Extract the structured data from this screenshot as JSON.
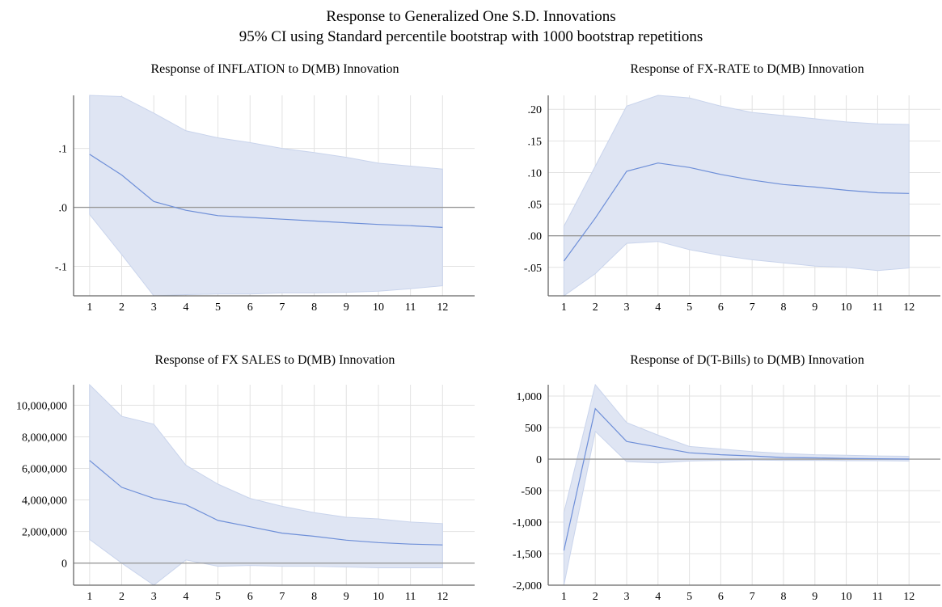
{
  "title": "Response to Generalized One S.D. Innovations",
  "subtitle": "95% CI using Standard percentile bootstrap with 1000 bootstrap repetitions",
  "colors": {
    "line": "#6e8fd8",
    "band": "#dfe5f3",
    "band_edge": "#c9d4ec",
    "zero": "#9a9a9a",
    "grid": "#e2e2e2",
    "axis": "#666666"
  },
  "chart_data": [
    {
      "type": "line",
      "title": "Response of INFLATION to D(MB) Innovation",
      "x": [
        1,
        2,
        3,
        4,
        5,
        6,
        7,
        8,
        9,
        10,
        11,
        12
      ],
      "xticks": [
        "1",
        "2",
        "3",
        "4",
        "5",
        "6",
        "7",
        "8",
        "9",
        "10",
        "11",
        "12"
      ],
      "ylim": [
        -0.15,
        0.19
      ],
      "yticks": [
        -0.1,
        0,
        0.1
      ],
      "ytick_labels": [
        "-.1",
        ".0",
        ".1"
      ],
      "series": [
        {
          "values": [
            0.09,
            0.055,
            0.01,
            -0.005,
            -0.014,
            -0.017,
            -0.02,
            -0.023,
            -0.026,
            -0.029,
            -0.031,
            -0.034
          ]
        }
      ],
      "ci_upper": [
        0.19,
        0.188,
        0.16,
        0.13,
        0.118,
        0.11,
        0.1,
        0.093,
        0.085,
        0.075,
        0.07,
        0.065
      ],
      "ci_lower": [
        -0.012,
        -0.08,
        -0.15,
        -0.148,
        -0.147,
        -0.147,
        -0.145,
        -0.145,
        -0.144,
        -0.142,
        -0.138,
        -0.133
      ]
    },
    {
      "type": "line",
      "title": "Response of FX-RATE to D(MB) Innovation",
      "x": [
        1,
        2,
        3,
        4,
        5,
        6,
        7,
        8,
        9,
        10,
        11,
        12
      ],
      "xticks": [
        "1",
        "2",
        "3",
        "4",
        "5",
        "6",
        "7",
        "8",
        "9",
        "10",
        "11",
        "12"
      ],
      "ylim": [
        -0.095,
        0.222
      ],
      "yticks": [
        -0.05,
        0,
        0.05,
        0.1,
        0.15,
        0.2
      ],
      "ytick_labels": [
        "-.05",
        ".00",
        ".05",
        ".10",
        ".15",
        ".20"
      ],
      "series": [
        {
          "values": [
            -0.04,
            0.028,
            0.102,
            0.115,
            0.108,
            0.097,
            0.088,
            0.081,
            0.077,
            0.072,
            0.068,
            0.067
          ]
        }
      ],
      "ci_upper": [
        0.015,
        0.11,
        0.205,
        0.222,
        0.218,
        0.205,
        0.195,
        0.19,
        0.185,
        0.18,
        0.177,
        0.176
      ],
      "ci_lower": [
        -0.095,
        -0.06,
        -0.012,
        -0.009,
        -0.022,
        -0.031,
        -0.038,
        -0.043,
        -0.048,
        -0.05,
        -0.055,
        -0.051
      ]
    },
    {
      "type": "line",
      "title": "Response of FX SALES to D(MB) Innovation",
      "x": [
        1,
        2,
        3,
        4,
        5,
        6,
        7,
        8,
        9,
        10,
        11,
        12
      ],
      "xticks": [
        "1",
        "2",
        "3",
        "4",
        "5",
        "6",
        "7",
        "8",
        "9",
        "10",
        "11",
        "12"
      ],
      "ylim": [
        -1400000,
        11300000
      ],
      "yticks": [
        0,
        2000000,
        4000000,
        6000000,
        8000000,
        10000000
      ],
      "ytick_labels": [
        "0",
        "2,000,000",
        "4,000,000",
        "6,000,000",
        "8,000,000",
        "10,000,000"
      ],
      "series": [
        {
          "values": [
            6500000,
            4800000,
            4100000,
            3700000,
            2700000,
            2300000,
            1900000,
            1700000,
            1450000,
            1300000,
            1200000,
            1150000
          ]
        }
      ],
      "ci_upper": [
        11300000,
        9300000,
        8800000,
        6200000,
        5000000,
        4100000,
        3600000,
        3200000,
        2900000,
        2800000,
        2600000,
        2500000
      ],
      "ci_lower": [
        1500000,
        0,
        -1400000,
        200000,
        -200000,
        -150000,
        -200000,
        -200000,
        -250000,
        -300000,
        -300000,
        -300000
      ]
    },
    {
      "type": "line",
      "title": "Response of D(T-Bills) to D(MB) Innovation",
      "x": [
        1,
        2,
        3,
        4,
        5,
        6,
        7,
        8,
        9,
        10,
        11,
        12
      ],
      "xticks": [
        "1",
        "2",
        "3",
        "4",
        "5",
        "6",
        "7",
        "8",
        "9",
        "10",
        "11",
        "12"
      ],
      "ylim": [
        -2000,
        1180
      ],
      "yticks": [
        -2000,
        -1500,
        -1000,
        -500,
        0,
        500,
        1000
      ],
      "ytick_labels": [
        "-2,000",
        "-1,500",
        "-1,000",
        "-500",
        "0",
        "500",
        "1,000"
      ],
      "series": [
        {
          "values": [
            -1450,
            800,
            280,
            190,
            100,
            70,
            50,
            25,
            20,
            10,
            5,
            0
          ]
        }
      ],
      "ci_upper": [
        -850,
        1180,
        580,
        380,
        200,
        160,
        120,
        90,
        70,
        60,
        50,
        45
      ],
      "ci_lower": [
        -2000,
        440,
        -40,
        -60,
        -30,
        -20,
        -15,
        -20,
        -20,
        -25,
        -25,
        -30
      ]
    }
  ]
}
